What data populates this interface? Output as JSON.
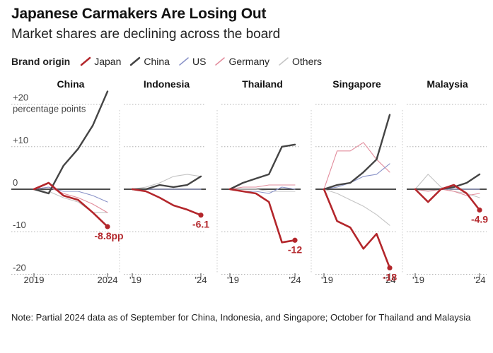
{
  "title": "Japanese Carmakers Are Losing Out",
  "subtitle": "Market shares are declining across the board",
  "legend": {
    "lead": "Brand origin",
    "entries": [
      {
        "label": "Japan",
        "color": "#b3262b"
      },
      {
        "label": "China",
        "color": "#444444"
      },
      {
        "label": "US",
        "color": "#8a93c8"
      },
      {
        "label": "Germany",
        "color": "#e28c9c"
      },
      {
        "label": "Others",
        "color": "#c4c4c4"
      }
    ]
  },
  "note": "Note: Partial 2024 data as of September for China, Indonesia, and Singapore; October for Thailand and Malaysia",
  "chart_data": {
    "type": "line",
    "y_unit_label": "percentage points",
    "y_tick_labels": [
      "+20",
      "+10",
      "0",
      "-10",
      "-20"
    ],
    "y_ticks": [
      20,
      10,
      0,
      -10,
      -20
    ],
    "ylim": [
      -22,
      22
    ],
    "x": [
      2019,
      2020,
      2021,
      2022,
      2023,
      2024
    ],
    "panels": [
      {
        "name": "China",
        "x_tick_labels": [
          "2019",
          "2024"
        ],
        "end_label": "-8.8pp",
        "series": {
          "Japan": [
            0,
            1.5,
            -1.5,
            -2.5,
            -5.5,
            -8.8
          ],
          "China": [
            0,
            -1,
            5.5,
            9.5,
            15,
            23
          ],
          "US": [
            0,
            0.5,
            -0.5,
            -0.5,
            -1.5,
            -3
          ],
          "Germany": [
            0,
            0.5,
            -1,
            -2,
            -3.5,
            -5.5
          ],
          "Others": [
            0,
            -0.5,
            -2,
            -3,
            -5.5,
            -5.5
          ]
        }
      },
      {
        "name": "Indonesia",
        "x_tick_labels": [
          "'19",
          "'24"
        ],
        "end_label": "-6.1",
        "series": {
          "Japan": [
            0,
            -0.5,
            -2,
            -3.8,
            -4.8,
            -6.1
          ],
          "China": [
            0,
            0,
            1,
            0.5,
            1,
            3
          ],
          "US": [
            0,
            0,
            0,
            0,
            0,
            0
          ],
          "Germany": [
            0,
            0,
            0,
            0,
            0,
            0
          ],
          "Others": [
            0,
            0.5,
            1.5,
            3,
            3.5,
            3
          ]
        }
      },
      {
        "name": "Thailand",
        "x_tick_labels": [
          "'19",
          "'24"
        ],
        "end_label": "-12",
        "series": {
          "Japan": [
            0,
            -0.5,
            -1,
            -3,
            -12.5,
            -12
          ],
          "China": [
            0,
            1.5,
            2.5,
            3.5,
            10,
            10.5
          ],
          "US": [
            0,
            -0.5,
            -0.5,
            -1,
            0.5,
            0
          ],
          "Germany": [
            0,
            0.5,
            0.5,
            1,
            1,
            1
          ],
          "Others": [
            0,
            0,
            0,
            -0.5,
            -0.5,
            -0.5
          ]
        }
      },
      {
        "name": "Singapore",
        "x_tick_labels": [
          "'19",
          "'24"
        ],
        "end_label": "-18",
        "series": {
          "Japan": [
            0,
            -7.5,
            -9,
            -14,
            -10.5,
            -18.5
          ],
          "China": [
            0,
            1,
            1.5,
            4,
            7,
            17.5
          ],
          "US": [
            0,
            0.5,
            1.5,
            3,
            3.5,
            6
          ],
          "Germany": [
            0,
            9,
            9,
            11,
            7,
            4
          ],
          "Others": [
            0,
            -1,
            -2.5,
            -4,
            -6,
            -8.5
          ]
        }
      },
      {
        "name": "Malaysia",
        "x_tick_labels": [
          "'19",
          "'24"
        ],
        "end_label": "-4.9",
        "series": {
          "Japan": [
            0,
            -3,
            0,
            1,
            -1,
            -4.9
          ],
          "China": [
            0,
            0,
            0,
            0.5,
            1.5,
            3.5
          ],
          "US": [
            0,
            0,
            0,
            0,
            0,
            0
          ],
          "Germany": [
            0,
            -0.5,
            0,
            -0.5,
            -1.5,
            -1
          ],
          "Others": [
            0,
            3.5,
            0.5,
            -0.5,
            -1,
            -2
          ]
        }
      }
    ]
  }
}
